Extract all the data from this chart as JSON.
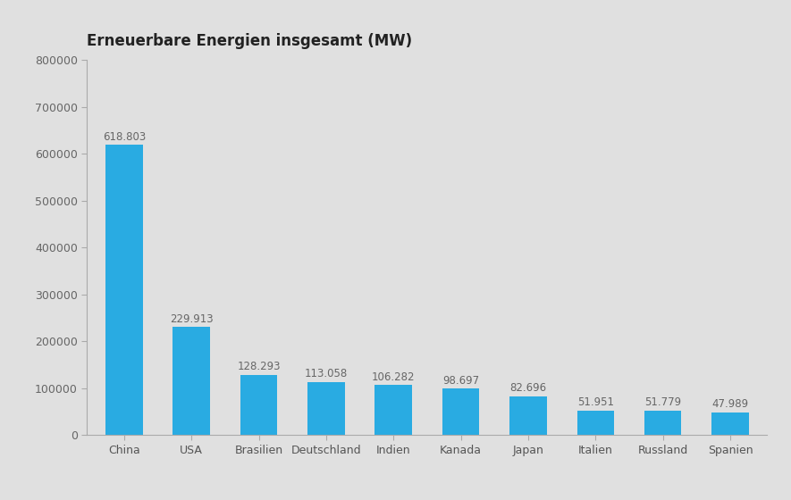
{
  "title": "Erneuerbare Energien insgesamt (MW)",
  "categories": [
    "China",
    "USA",
    "Brasilien",
    "Deutschland",
    "Indien",
    "Kanada",
    "Japan",
    "Italien",
    "Russland",
    "Spanien"
  ],
  "values": [
    618803,
    229913,
    128293,
    113058,
    106282,
    98697,
    82696,
    51951,
    51779,
    47989
  ],
  "labels": [
    "618.803",
    "229.913",
    "128.293",
    "113.058",
    "106.282",
    "98.697",
    "82.696",
    "51.951",
    "51.779",
    "47.989"
  ],
  "bar_color": "#29ABE2",
  "background_color": "#E0E0E0",
  "title_fontsize": 12,
  "label_fontsize": 8.5,
  "tick_fontsize": 9,
  "xtick_fontsize": 9,
  "ylim": [
    0,
    800000
  ],
  "yticks": [
    0,
    100000,
    200000,
    300000,
    400000,
    500000,
    600000,
    700000,
    800000
  ]
}
